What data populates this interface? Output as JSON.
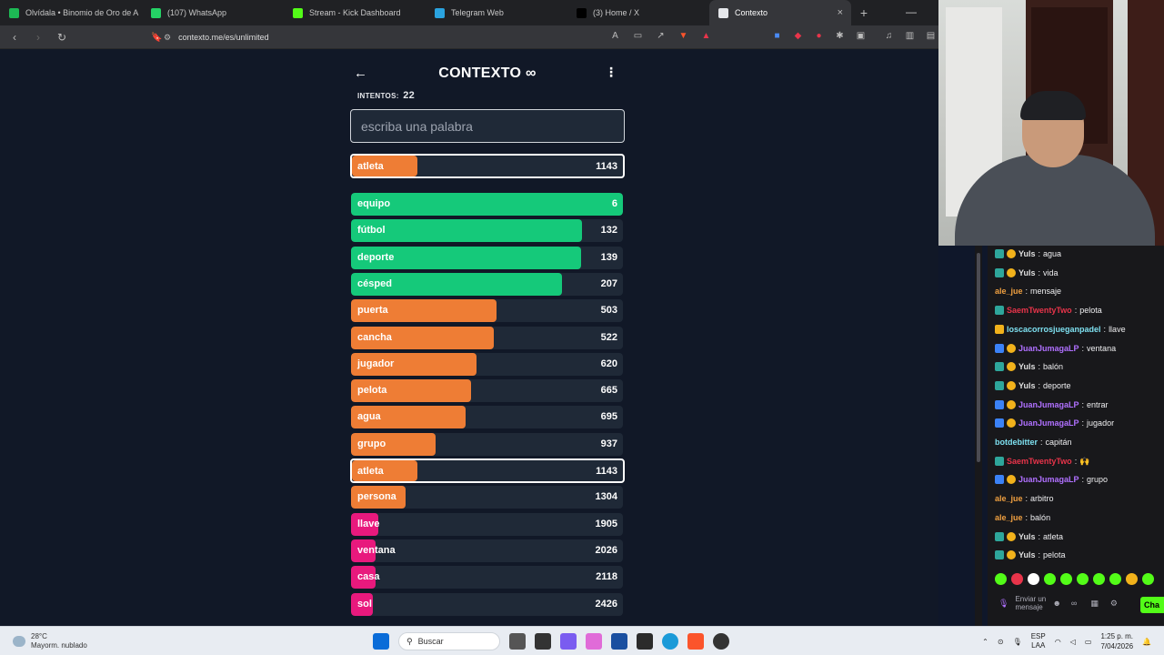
{
  "browser": {
    "tabs": [
      {
        "label": "Olvídala • Binomio de Oro de A",
        "favicon_color": "#1db954",
        "active": false
      },
      {
        "label": "(107) WhatsApp",
        "favicon_color": "#25d366",
        "active": false
      },
      {
        "label": "Stream - Kick Dashboard",
        "favicon_color": "#53fc18",
        "active": false
      },
      {
        "label": "Telegram Web",
        "favicon_color": "#2aa3df",
        "active": false
      },
      {
        "label": "(3) Home / X",
        "favicon_color": "#000000",
        "active": false
      },
      {
        "label": "Contexto",
        "favicon_color": "#e5e7eb",
        "active": true
      }
    ],
    "new_tab": "+",
    "url": "contexto.me/es/unlimited"
  },
  "game": {
    "title": "CONTEXTO ∞",
    "attempts_label": "INTENTOS:",
    "attempts_value": "22",
    "input_placeholder": "escriba una palabra",
    "last_guess": {
      "word": "atleta",
      "rank": "1143",
      "color": "#ee7d35",
      "fill": 0.24
    },
    "guesses": [
      {
        "word": "equipo",
        "rank": "6",
        "color": "#15c97a",
        "fill": 1.0,
        "highlight": false
      },
      {
        "word": "fútbol",
        "rank": "132",
        "color": "#15c97a",
        "fill": 0.85,
        "highlight": false
      },
      {
        "word": "deporte",
        "rank": "139",
        "color": "#15c97a",
        "fill": 0.845,
        "highlight": false
      },
      {
        "word": "césped",
        "rank": "207",
        "color": "#15c97a",
        "fill": 0.775,
        "highlight": false
      },
      {
        "word": "puerta",
        "rank": "503",
        "color": "#ee7d35",
        "fill": 0.535,
        "highlight": false
      },
      {
        "word": "cancha",
        "rank": "522",
        "color": "#ee7d35",
        "fill": 0.525,
        "highlight": false
      },
      {
        "word": "jugador",
        "rank": "620",
        "color": "#ee7d35",
        "fill": 0.46,
        "highlight": false
      },
      {
        "word": "pelota",
        "rank": "665",
        "color": "#ee7d35",
        "fill": 0.44,
        "highlight": false
      },
      {
        "word": "agua",
        "rank": "695",
        "color": "#ee7d35",
        "fill": 0.42,
        "highlight": false
      },
      {
        "word": "grupo",
        "rank": "937",
        "color": "#ee7d35",
        "fill": 0.31,
        "highlight": false
      },
      {
        "word": "atleta",
        "rank": "1143",
        "color": "#ee7d35",
        "fill": 0.24,
        "highlight": true
      },
      {
        "word": "persona",
        "rank": "1304",
        "color": "#ee7d35",
        "fill": 0.2,
        "highlight": false
      },
      {
        "word": "llave",
        "rank": "1905",
        "color": "#e8197d",
        "fill": 0.1,
        "highlight": false
      },
      {
        "word": "ventana",
        "rank": "2026",
        "color": "#e8197d",
        "fill": 0.09,
        "highlight": false
      },
      {
        "word": "casa",
        "rank": "2118",
        "color": "#e8197d",
        "fill": 0.09,
        "highlight": false
      },
      {
        "word": "sol",
        "rank": "2426",
        "color": "#e8197d",
        "fill": 0.08,
        "highlight": false
      }
    ]
  },
  "chat": {
    "messages": [
      {
        "badges": [
          "sub",
          "coin"
        ],
        "user": "Yuls",
        "user_color": "#e0e0e0",
        "text": "agua"
      },
      {
        "badges": [
          "sub",
          "coin"
        ],
        "user": "Yuls",
        "user_color": "#e0e0e0",
        "text": "vida"
      },
      {
        "badges": [],
        "user": "ale_jue",
        "user_color": "#f0a040",
        "text": "mensaje"
      },
      {
        "badges": [
          "sub"
        ],
        "user": "SaemTwentyTwo",
        "user_color": "#e8344a",
        "text": "pelota"
      },
      {
        "badges": [
          "crown"
        ],
        "user": "loscacorrosjueganpadel",
        "user_color": "#7ee0f0",
        "text": "llave"
      },
      {
        "badges": [
          "star",
          "coin"
        ],
        "user": "JuanJumagaLP",
        "user_color": "#b070ff",
        "text": "ventana"
      },
      {
        "badges": [
          "sub",
          "coin"
        ],
        "user": "Yuls",
        "user_color": "#e0e0e0",
        "text": "balón"
      },
      {
        "badges": [
          "sub",
          "coin"
        ],
        "user": "Yuls",
        "user_color": "#e0e0e0",
        "text": "deporte"
      },
      {
        "badges": [
          "star",
          "coin"
        ],
        "user": "JuanJumagaLP",
        "user_color": "#b070ff",
        "text": "entrar"
      },
      {
        "badges": [
          "star",
          "coin"
        ],
        "user": "JuanJumagaLP",
        "user_color": "#b070ff",
        "text": "jugador"
      },
      {
        "badges": [],
        "user": "botdebitter",
        "user_color": "#7ee0f0",
        "text": "capitán"
      },
      {
        "badges": [
          "sub"
        ],
        "user": "SaemTwentyTwo",
        "user_color": "#e8344a",
        "text": "🙌"
      },
      {
        "badges": [
          "star",
          "coin"
        ],
        "user": "JuanJumagaLP",
        "user_color": "#b070ff",
        "text": "grupo"
      },
      {
        "badges": [],
        "user": "ale_jue",
        "user_color": "#f0a040",
        "text": "arbitro"
      },
      {
        "badges": [],
        "user": "ale_jue",
        "user_color": "#f0a040",
        "text": "balón"
      },
      {
        "badges": [
          "sub",
          "coin"
        ],
        "user": "Yuls",
        "user_color": "#e0e0e0",
        "text": "atleta"
      },
      {
        "badges": [
          "sub",
          "coin"
        ],
        "user": "Yuls",
        "user_color": "#e0e0e0",
        "text": "pelota"
      }
    ],
    "send_placeholder": "Enviar un mensaje",
    "chat_button": "Cha"
  },
  "taskbar": {
    "temperature": "28°C",
    "weather": "Mayorm. nublado",
    "search_label": "Buscar",
    "lang_top": "ESP",
    "lang_bottom": "LAA",
    "time": "1:25 p. m.",
    "date": "7/04/2026"
  }
}
